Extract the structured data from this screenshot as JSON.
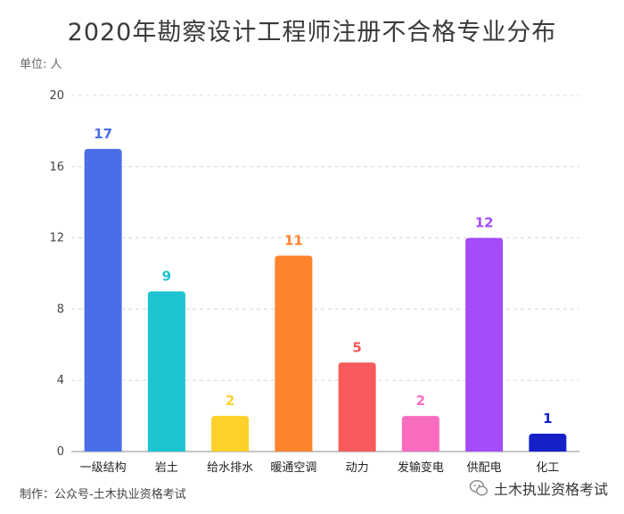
{
  "unit_label": "单位: 人",
  "footer": "制作：公众号-土木执业资格考试",
  "watermark": "土木执业资格考试",
  "chart_data": {
    "type": "bar",
    "title": "2020年勘察设计工程师注册不合格专业分布",
    "categories": [
      "一级结构",
      "岩土",
      "给水排水",
      "暖通空调",
      "动力",
      "发输变电",
      "供配电",
      "化工"
    ],
    "values": [
      17,
      9,
      2,
      11,
      5,
      2,
      12,
      1
    ],
    "colors": [
      "#4a6ee8",
      "#1cc4d2",
      "#fdd02a",
      "#fe832d",
      "#f65a5a",
      "#f86cc0",
      "#a44bfa",
      "#1520c8"
    ],
    "ylim": [
      0,
      20
    ],
    "yticks": [
      "0",
      "4",
      "8",
      "12",
      "16",
      "20"
    ],
    "grid": true
  }
}
